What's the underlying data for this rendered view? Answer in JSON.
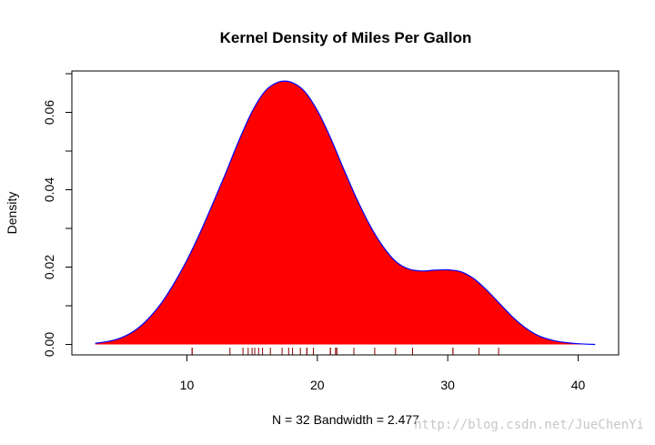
{
  "chart_data": {
    "type": "area",
    "title": "Kernel Density of Miles Per Gallon",
    "xlabel": "N = 32   Bandwidth = 2.477",
    "ylabel": "Density",
    "xlim": [
      1.18,
      43.1
    ],
    "ylim": [
      -0.0027,
      0.0707
    ],
    "x_ticks": [
      10,
      20,
      30,
      40
    ],
    "x_tick_labels": [
      "10",
      "20",
      "30",
      "40"
    ],
    "y_ticks": [
      0.0,
      0.02,
      0.04,
      0.06
    ],
    "y_tick_labels": [
      "0.00",
      "0.02",
      "0.04",
      "0.06"
    ],
    "fill_color": "#ff0000",
    "line_color": "#0000ff",
    "rug_color": "#8b0000",
    "series": [
      {
        "name": "density",
        "x": [
          2.97,
          4,
          5,
          6,
          7,
          8,
          9,
          10,
          11,
          12,
          13,
          14,
          15,
          16,
          17,
          18,
          19,
          20,
          21,
          22,
          23,
          24,
          25,
          26,
          27,
          28,
          29,
          30,
          31,
          32,
          33,
          34,
          35,
          36,
          37,
          38,
          39,
          40,
          41.3
        ],
        "values": [
          0.0003,
          0.0008,
          0.0018,
          0.0036,
          0.0065,
          0.0105,
          0.0157,
          0.0218,
          0.0288,
          0.0365,
          0.0445,
          0.0528,
          0.0602,
          0.0655,
          0.0678,
          0.0678,
          0.0655,
          0.0605,
          0.0535,
          0.0455,
          0.0378,
          0.031,
          0.0255,
          0.0215,
          0.0195,
          0.019,
          0.0192,
          0.0193,
          0.0188,
          0.017,
          0.014,
          0.0105,
          0.007,
          0.0042,
          0.0022,
          0.0011,
          0.0005,
          0.0002,
          0.0
        ]
      }
    ],
    "rug": [
      10.4,
      10.4,
      13.3,
      14.3,
      14.7,
      15.0,
      15.2,
      15.2,
      15.5,
      15.8,
      16.4,
      17.3,
      17.8,
      18.1,
      18.7,
      19.2,
      19.2,
      19.7,
      21.0,
      21.0,
      21.4,
      21.4,
      21.5,
      22.8,
      22.8,
      24.4,
      26.0,
      27.3,
      30.4,
      30.4,
      32.4,
      33.9
    ]
  },
  "watermark": "http://blog.csdn.net/JueChenYi"
}
